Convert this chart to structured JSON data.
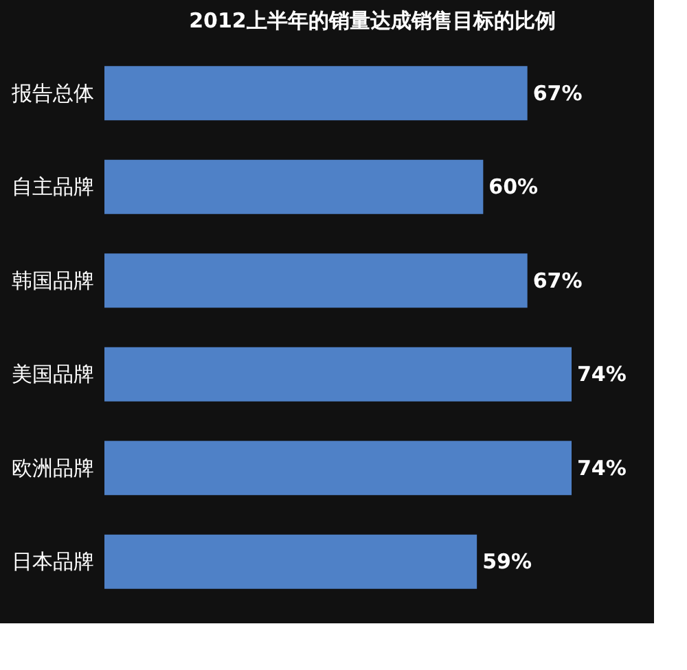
{
  "chart_data": {
    "type": "bar",
    "orientation": "horizontal",
    "title": "2012上半年的销量达成销售目标的比例",
    "categories": [
      "报告总体",
      "自主品牌",
      "韩国品牌",
      "美国品牌",
      "欧洲品牌",
      "日本品牌"
    ],
    "values": [
      67,
      60,
      67,
      74,
      74,
      59
    ],
    "value_labels": [
      "67%",
      "60%",
      "67%",
      "74%",
      "74%",
      "59%"
    ],
    "color": "#4f81c7",
    "tick_labels": "y",
    "grid": false
  }
}
